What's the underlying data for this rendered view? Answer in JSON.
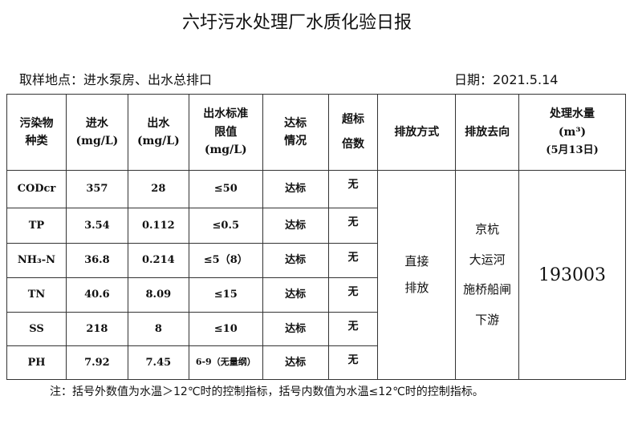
{
  "title": "六圩污水处理厂水质化验日报",
  "location": "取样地点：进水泵房、出水总排口",
  "date": "日期：2021.5.14",
  "headers": {
    "pollutant": [
      "污染物",
      "种类"
    ],
    "inflow": [
      "进水",
      "(mg/L)"
    ],
    "outflow": [
      "出水",
      "(mg/L)"
    ],
    "limit": [
      "出水标准",
      "限值",
      "(mg/L)"
    ],
    "compliance": [
      "达标",
      "情况"
    ],
    "exceed": [
      "超标",
      "倍数"
    ],
    "discharge_mode": "排放方式",
    "discharge_dest": "排放去向",
    "volume": [
      "处理水量",
      "(m³)",
      "(5月13日)"
    ]
  },
  "rows": [
    {
      "name": "CODcr",
      "in": "357",
      "out": "28",
      "limit": "≤50",
      "status": "达标",
      "exceed": "无"
    },
    {
      "name": "TP",
      "in": "3.54",
      "out": "0.112",
      "limit": "≤0.5",
      "status": "达标",
      "exceed": "无"
    },
    {
      "name": "NH₃-N",
      "in": "36.8",
      "out": "0.214",
      "limit": "≤5（8）",
      "status": "达标",
      "exceed": "无"
    },
    {
      "name": "TN",
      "in": "40.6",
      "out": "8.09",
      "limit": "≤15",
      "status": "达标",
      "exceed": "无"
    },
    {
      "name": "SS",
      "in": "218",
      "out": "8",
      "limit": "≤10",
      "status": "达标",
      "exceed": "无"
    },
    {
      "name": "PH",
      "in": "7.92",
      "out": "7.45",
      "limit": "6-9（无量纲）",
      "status": "达标",
      "exceed": "无"
    }
  ],
  "discharge_mode": [
    "直接",
    "排放"
  ],
  "discharge_dest": [
    "京杭",
    "大运河",
    "施桥船闸",
    "下游"
  ],
  "volume": "193003",
  "note": "注：括号外数值为水温＞12℃时的控制指标，括号内数值为水温≤12℃时的控制指标。"
}
